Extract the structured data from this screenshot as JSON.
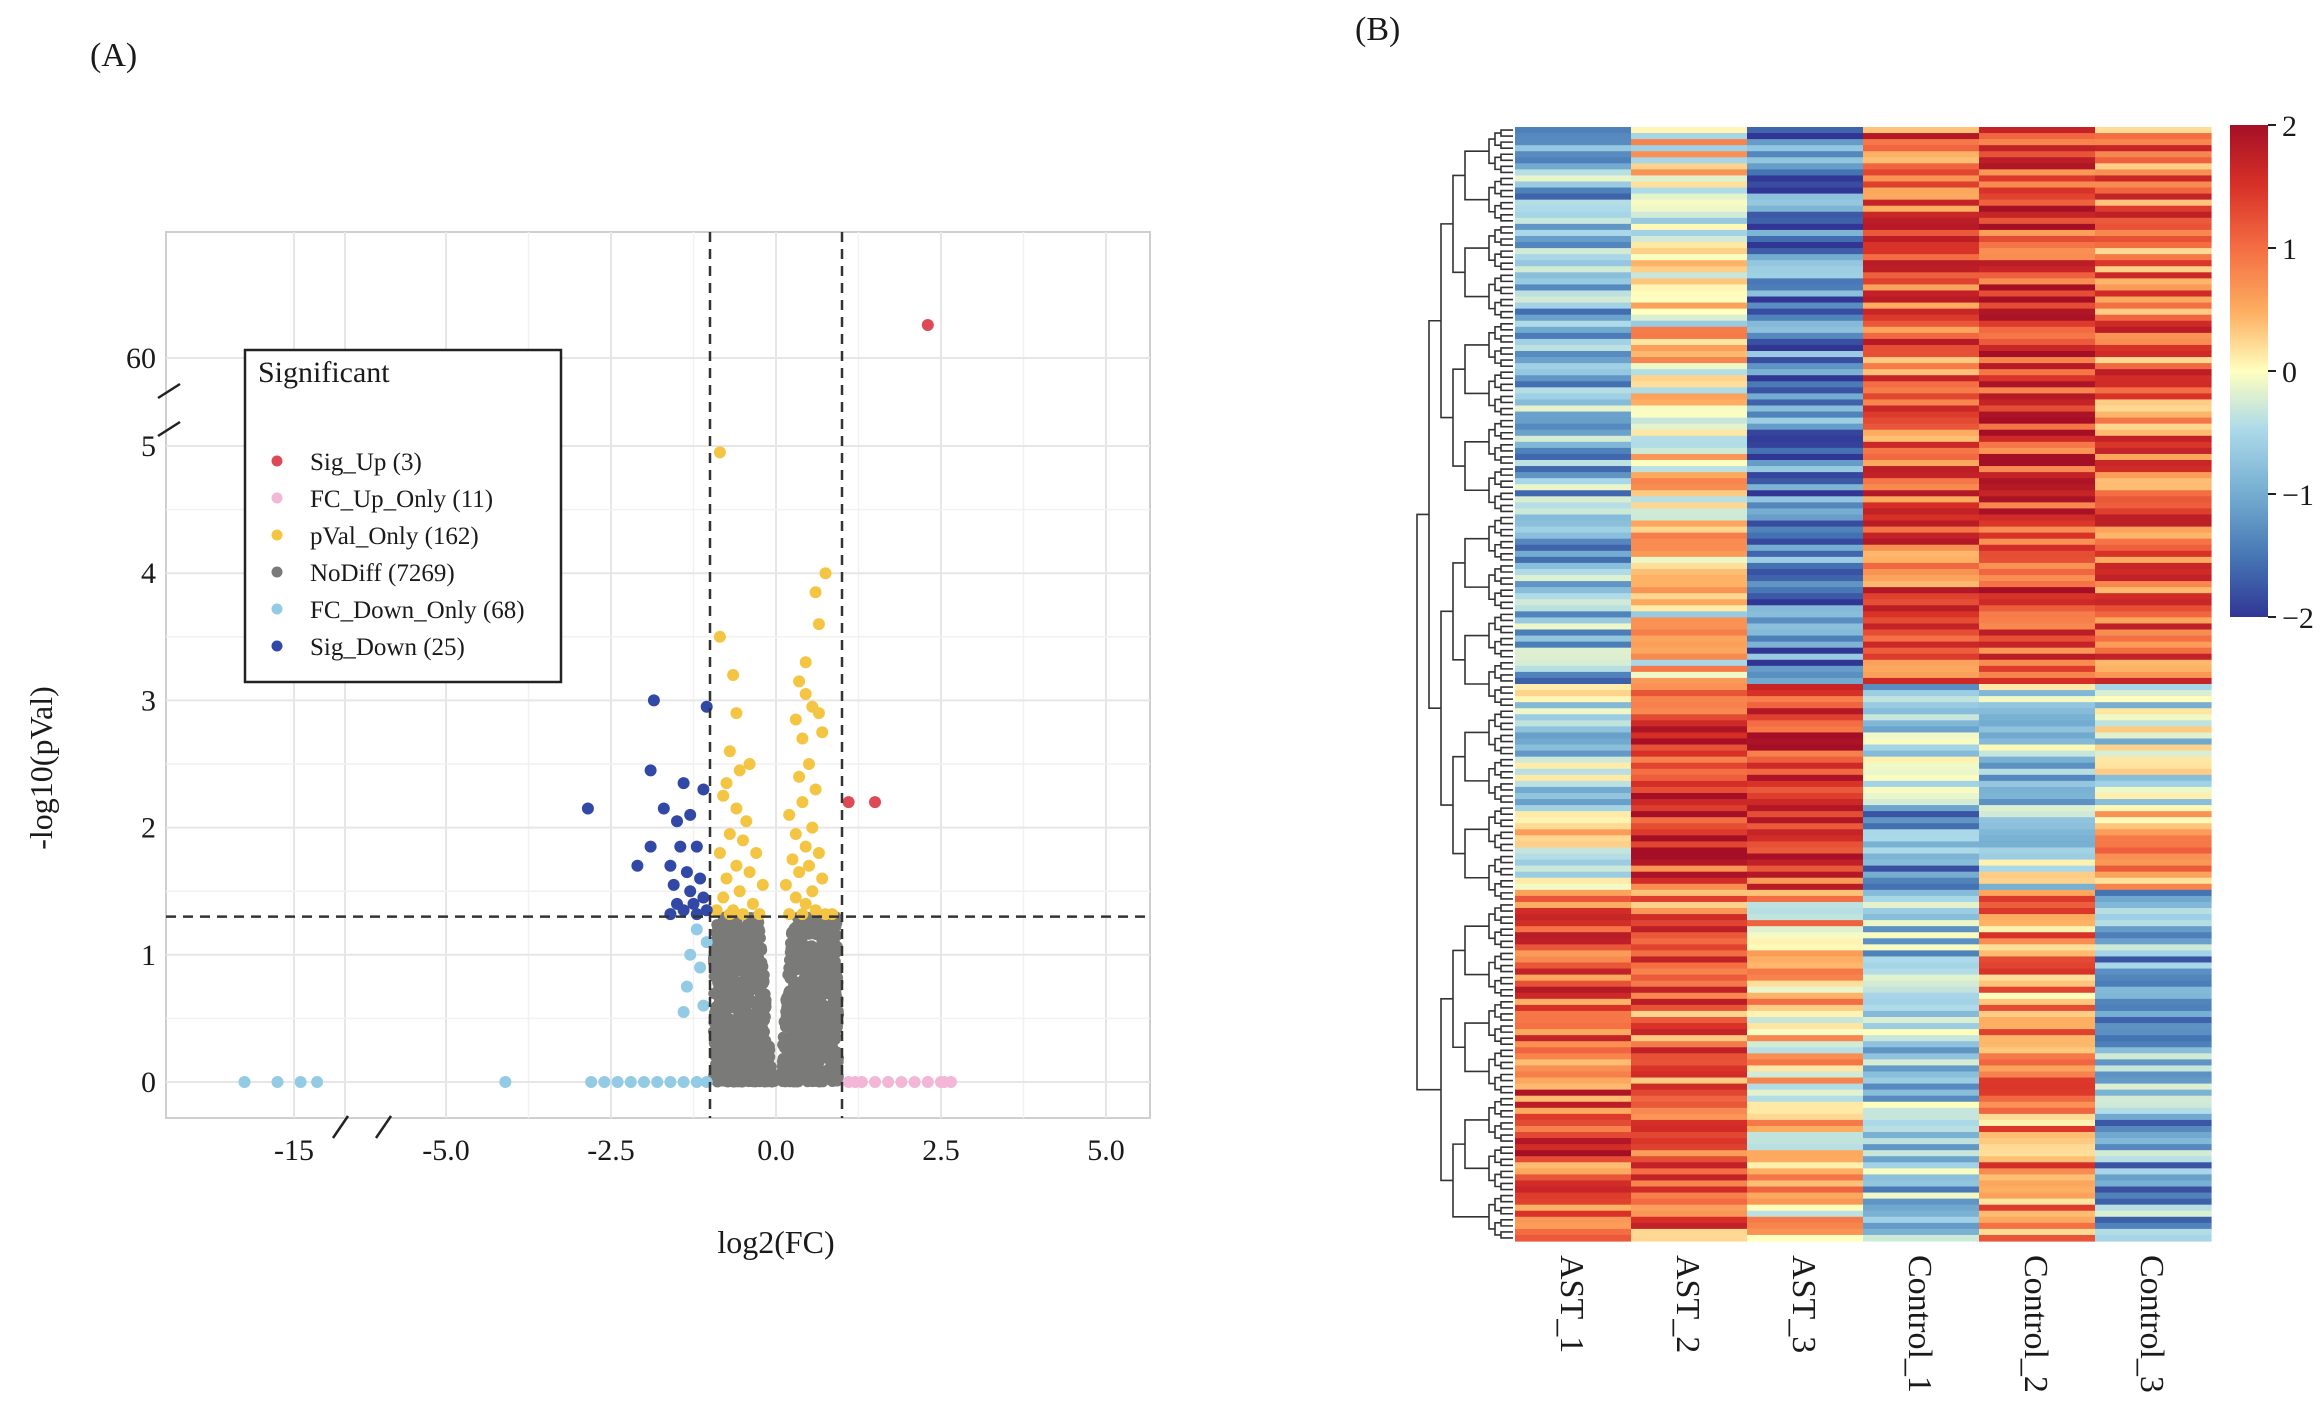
{
  "panels": {
    "a_label": "(A)",
    "b_label": "(B)"
  },
  "colors": {
    "Sig_Up": "#dd4a55",
    "FC_Up_Only": "#f2b6d6",
    "pVal_Only": "#f4c542",
    "NoDiff": "#7a7a78",
    "FC_Down_Only": "#93cbe4",
    "Sig_Down": "#3248a6"
  },
  "chart_data": [
    {
      "type": "scatter",
      "subtype": "volcano",
      "title": "",
      "xlabel": "log2(FC)",
      "ylabel": "-log10(pVal)",
      "x_ticks": [
        "-15",
        "-5.0",
        "-2.5",
        "0.0",
        "2.5",
        "5.0"
      ],
      "y_ticks": [
        "0",
        "1",
        "2",
        "3",
        "4",
        "5",
        "60"
      ],
      "axis_breaks": {
        "x": [
          -14,
          -6
        ],
        "y": [
          5.5,
          59
        ]
      },
      "thresholds": {
        "log2fc": [
          -1,
          1
        ],
        "neg_log10_p": 1.3
      },
      "legend": {
        "title": "Significant",
        "position": "top-left",
        "items": [
          {
            "key": "Sig_Up",
            "label": "Sig_Up (3)"
          },
          {
            "key": "FC_Up_Only",
            "label": "FC_Up_Only (11)"
          },
          {
            "key": "pVal_Only",
            "label": "pVal_Only (162)"
          },
          {
            "key": "NoDiff",
            "label": "NoDiff (7269)"
          },
          {
            "key": "FC_Down_Only",
            "label": "FC_Down_Only (68)"
          },
          {
            "key": "Sig_Down",
            "label": "Sig_Down (25)"
          }
        ]
      },
      "series": [
        {
          "name": "Sig_Up",
          "points": [
            [
              2.3,
              63
            ],
            [
              1.1,
              2.2
            ],
            [
              1.5,
              2.2
            ]
          ]
        },
        {
          "name": "FC_Up_Only",
          "points": [
            [
              1.1,
              0
            ],
            [
              1.3,
              0
            ],
            [
              1.5,
              0
            ],
            [
              1.7,
              0
            ],
            [
              2.1,
              0
            ],
            [
              2.5,
              0
            ],
            [
              2.65,
              0
            ],
            [
              1.2,
              0
            ],
            [
              1.9,
              0
            ],
            [
              2.3,
              0
            ],
            [
              2.55,
              0
            ]
          ]
        },
        {
          "name": "pVal_Only",
          "points": [
            [
              -0.85,
              4.95
            ],
            [
              0.75,
              4.0
            ],
            [
              0.6,
              3.85
            ],
            [
              0.65,
              3.6
            ],
            [
              -0.85,
              3.5
            ],
            [
              0.45,
              3.3
            ],
            [
              -0.65,
              3.2
            ],
            [
              0.35,
              3.15
            ],
            [
              0.45,
              3.05
            ],
            [
              0.55,
              2.95
            ],
            [
              0.65,
              2.9
            ],
            [
              0.3,
              2.85
            ],
            [
              -0.6,
              2.9
            ],
            [
              0.7,
              2.75
            ],
            [
              0.4,
              2.7
            ],
            [
              -0.7,
              2.6
            ],
            [
              -0.4,
              2.5
            ],
            [
              0.5,
              2.5
            ],
            [
              -0.55,
              2.45
            ],
            [
              0.35,
              2.4
            ],
            [
              -0.75,
              2.35
            ],
            [
              -0.8,
              2.25
            ],
            [
              0.6,
              2.3
            ],
            [
              0.4,
              2.2
            ],
            [
              -0.6,
              2.15
            ],
            [
              0.2,
              2.1
            ],
            [
              -0.45,
              2.05
            ],
            [
              0.55,
              2.0
            ],
            [
              -0.7,
              1.95
            ],
            [
              0.3,
              1.95
            ],
            [
              -0.5,
              1.9
            ],
            [
              0.45,
              1.85
            ],
            [
              -0.85,
              1.8
            ],
            [
              -0.3,
              1.8
            ],
            [
              0.65,
              1.8
            ],
            [
              0.25,
              1.75
            ],
            [
              -0.6,
              1.7
            ],
            [
              0.5,
              1.7
            ],
            [
              -0.4,
              1.65
            ],
            [
              0.35,
              1.65
            ],
            [
              -0.75,
              1.6
            ],
            [
              0.7,
              1.6
            ],
            [
              -0.2,
              1.55
            ],
            [
              0.15,
              1.55
            ],
            [
              -0.55,
              1.5
            ],
            [
              0.55,
              1.5
            ],
            [
              -0.8,
              1.45
            ],
            [
              0.3,
              1.45
            ],
            [
              -0.35,
              1.4
            ],
            [
              0.45,
              1.4
            ],
            [
              -0.65,
              1.35
            ],
            [
              0.6,
              1.35
            ],
            [
              -0.9,
              1.35
            ],
            [
              0.85,
              1.32
            ],
            [
              -0.25,
              1.32
            ],
            [
              0.2,
              1.32
            ],
            [
              -0.5,
              1.32
            ],
            [
              0.4,
              1.32
            ],
            [
              -0.7,
              1.32
            ],
            [
              0.75,
              1.32
            ]
          ]
        },
        {
          "name": "NoDiff",
          "points": []
        },
        {
          "name": "FC_Down_Only",
          "points": [
            [
              -16.5,
              0
            ],
            [
              -15.5,
              0
            ],
            [
              -14.8,
              0
            ],
            [
              -14.3,
              0
            ],
            [
              -4.1,
              0
            ],
            [
              -2.8,
              0
            ],
            [
              -2.6,
              0
            ],
            [
              -2.4,
              0
            ],
            [
              -2.2,
              0
            ],
            [
              -2.0,
              0
            ],
            [
              -1.8,
              0
            ],
            [
              -1.6,
              0
            ],
            [
              -1.4,
              0
            ],
            [
              -1.2,
              0
            ],
            [
              -1.05,
              0
            ],
            [
              -1.2,
              1.2
            ],
            [
              -1.05,
              1.1
            ],
            [
              -1.3,
              1.0
            ],
            [
              -1.15,
              0.9
            ],
            [
              -1.35,
              0.75
            ],
            [
              -1.1,
              0.6
            ],
            [
              -1.4,
              0.55
            ]
          ]
        },
        {
          "name": "Sig_Down",
          "points": [
            [
              -1.85,
              3.0
            ],
            [
              -1.05,
              2.95
            ],
            [
              -1.9,
              2.45
            ],
            [
              -1.4,
              2.35
            ],
            [
              -1.1,
              2.3
            ],
            [
              -1.7,
              2.15
            ],
            [
              -1.3,
              2.1
            ],
            [
              -1.5,
              2.05
            ],
            [
              -2.85,
              2.15
            ],
            [
              -1.9,
              1.85
            ],
            [
              -1.45,
              1.85
            ],
            [
              -1.2,
              1.85
            ],
            [
              -2.1,
              1.7
            ],
            [
              -1.6,
              1.7
            ],
            [
              -1.35,
              1.65
            ],
            [
              -1.15,
              1.6
            ],
            [
              -1.55,
              1.55
            ],
            [
              -1.3,
              1.5
            ],
            [
              -1.1,
              1.45
            ],
            [
              -1.5,
              1.4
            ],
            [
              -1.25,
              1.4
            ],
            [
              -1.05,
              1.35
            ],
            [
              -1.4,
              1.35
            ],
            [
              -1.2,
              1.32
            ],
            [
              -1.6,
              1.32
            ]
          ]
        }
      ]
    },
    {
      "type": "heatmap",
      "title": "",
      "columns": [
        "AST_1",
        "AST_2",
        "AST_3",
        "Control_1",
        "Control_2",
        "Control_3"
      ],
      "colorbar": {
        "min": -2,
        "max": 2,
        "ticks": [
          "2",
          "1",
          "0",
          "−1",
          "−2"
        ]
      },
      "row_dendrogram": true,
      "blocks": [
        {
          "rows": 92,
          "means": [
            -0.9,
            0.1,
            -1.4,
            1.1,
            1.4,
            1.0
          ]
        },
        {
          "rows": 20,
          "means": [
            -0.5,
            1.5,
            1.6,
            -0.7,
            -0.6,
            -0.3
          ]
        },
        {
          "rows": 14,
          "means": [
            0.1,
            1.4,
            1.3,
            -1.0,
            -0.3,
            0.4
          ]
        },
        {
          "rows": 58,
          "means": [
            1.2,
            1.0,
            0.3,
            -0.7,
            0.8,
            -1.0
          ]
        }
      ]
    }
  ]
}
